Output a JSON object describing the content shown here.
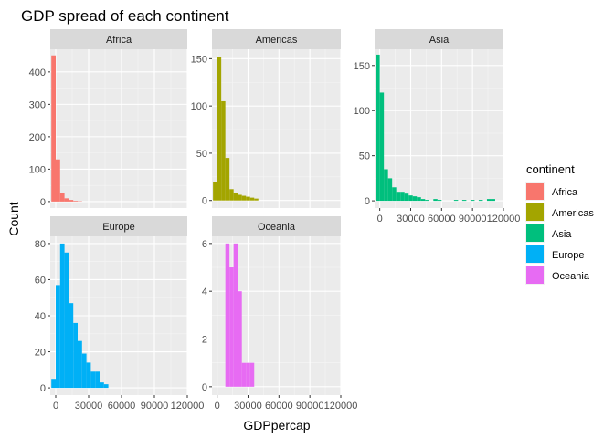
{
  "chart_data": {
    "type": "bar",
    "title": "GDP spread of each continent",
    "xlabel": "GDPpercap",
    "ylabel": "Count",
    "bin_width": 4000,
    "legend": {
      "title": "continent",
      "position": "right",
      "entries": [
        {
          "label": "Africa",
          "color": "#F8766D"
        },
        {
          "label": "Americas",
          "color": "#A3A500"
        },
        {
          "label": "Asia",
          "color": "#00BF7D"
        },
        {
          "label": "Europe",
          "color": "#00B0F6"
        },
        {
          "label": "Oceania",
          "color": "#E76BF3"
        }
      ]
    },
    "x_ticks": [
      0,
      30000,
      60000,
      90000,
      120000
    ],
    "x_tick_labels": [
      "0",
      "30000",
      "60000",
      "90000",
      "120000"
    ],
    "xlim": [
      -5000,
      120000
    ],
    "panels": [
      {
        "name": "Africa",
        "color": "#F8766D",
        "ylim": [
          -20,
          470
        ],
        "y_ticks": [
          0,
          100,
          200,
          300,
          400
        ],
        "y_tick_labels": [
          "0",
          "100",
          "200",
          "300",
          "400"
        ],
        "bins": [
          {
            "x": -2000,
            "count": 451
          },
          {
            "x": 2000,
            "count": 130
          },
          {
            "x": 6000,
            "count": 27
          },
          {
            "x": 10000,
            "count": 10
          },
          {
            "x": 14000,
            "count": 5
          },
          {
            "x": 18000,
            "count": 2
          },
          {
            "x": 22000,
            "count": 1
          }
        ]
      },
      {
        "name": "Americas",
        "color": "#A3A500",
        "ylim": [
          -8,
          160
        ],
        "y_ticks": [
          0,
          50,
          100,
          150
        ],
        "y_tick_labels": [
          "0",
          "50",
          "100",
          "150"
        ],
        "bins": [
          {
            "x": -2000,
            "count": 20
          },
          {
            "x": 2000,
            "count": 152
          },
          {
            "x": 6000,
            "count": 105
          },
          {
            "x": 10000,
            "count": 45
          },
          {
            "x": 14000,
            "count": 12
          },
          {
            "x": 18000,
            "count": 8
          },
          {
            "x": 22000,
            "count": 6
          },
          {
            "x": 26000,
            "count": 5
          },
          {
            "x": 30000,
            "count": 4
          },
          {
            "x": 34000,
            "count": 3
          },
          {
            "x": 38000,
            "count": 2
          }
        ]
      },
      {
        "name": "Asia",
        "color": "#00BF7D",
        "ylim": [
          -8,
          168
        ],
        "y_ticks": [
          0,
          50,
          100,
          150
        ],
        "y_tick_labels": [
          "0",
          "50",
          "100",
          "150"
        ],
        "bins": [
          {
            "x": -2000,
            "count": 162
          },
          {
            "x": 2000,
            "count": 120
          },
          {
            "x": 6000,
            "count": 35
          },
          {
            "x": 10000,
            "count": 25
          },
          {
            "x": 14000,
            "count": 15
          },
          {
            "x": 18000,
            "count": 10
          },
          {
            "x": 22000,
            "count": 10
          },
          {
            "x": 26000,
            "count": 8
          },
          {
            "x": 30000,
            "count": 6
          },
          {
            "x": 34000,
            "count": 5
          },
          {
            "x": 38000,
            "count": 4
          },
          {
            "x": 42000,
            "count": 2
          },
          {
            "x": 46000,
            "count": 1
          },
          {
            "x": 54000,
            "count": 2
          },
          {
            "x": 58000,
            "count": 1
          },
          {
            "x": 74000,
            "count": 1
          },
          {
            "x": 82000,
            "count": 1
          },
          {
            "x": 90000,
            "count": 1
          },
          {
            "x": 98000,
            "count": 1
          },
          {
            "x": 106000,
            "count": 2
          },
          {
            "x": 110000,
            "count": 2
          }
        ]
      },
      {
        "name": "Europe",
        "color": "#00B0F6",
        "ylim": [
          -4,
          84
        ],
        "y_ticks": [
          0,
          20,
          40,
          60,
          80
        ],
        "y_tick_labels": [
          "0",
          "20",
          "40",
          "60",
          "80"
        ],
        "bins": [
          {
            "x": -2000,
            "count": 5
          },
          {
            "x": 2000,
            "count": 57
          },
          {
            "x": 6000,
            "count": 80
          },
          {
            "x": 10000,
            "count": 75
          },
          {
            "x": 14000,
            "count": 47
          },
          {
            "x": 18000,
            "count": 36
          },
          {
            "x": 22000,
            "count": 26
          },
          {
            "x": 26000,
            "count": 19
          },
          {
            "x": 30000,
            "count": 14
          },
          {
            "x": 34000,
            "count": 9
          },
          {
            "x": 38000,
            "count": 9
          },
          {
            "x": 42000,
            "count": 3
          },
          {
            "x": 46000,
            "count": 2
          }
        ]
      },
      {
        "name": "Oceania",
        "color": "#E76BF3",
        "ylim": [
          -0.35,
          6.3
        ],
        "y_ticks": [
          0,
          2,
          4,
          6
        ],
        "y_tick_labels": [
          "0",
          "2",
          "4",
          "6"
        ],
        "bins": [
          {
            "x": 10000,
            "count": 6
          },
          {
            "x": 14000,
            "count": 5
          },
          {
            "x": 18000,
            "count": 6
          },
          {
            "x": 22000,
            "count": 4
          },
          {
            "x": 26000,
            "count": 1
          },
          {
            "x": 30000,
            "count": 1
          },
          {
            "x": 34000,
            "count": 1
          }
        ]
      }
    ]
  }
}
